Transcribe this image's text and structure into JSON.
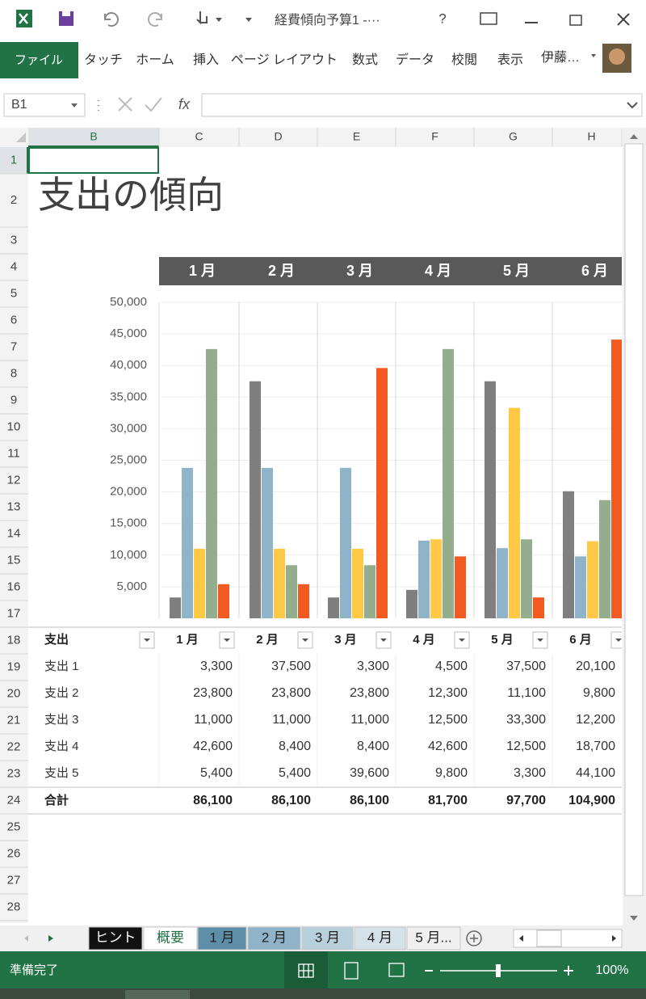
{
  "window": {
    "title": "経費傾向予算1 -···",
    "help": "?"
  },
  "ribbon": {
    "file_tab": "ファイル",
    "tabs": [
      "タッチ",
      "ホーム",
      "挿入",
      "ページ レイアウト",
      "数式",
      "データ",
      "校閲",
      "表示"
    ],
    "user": "伊藤…"
  },
  "formula_bar": {
    "name_box": "B1",
    "fx": "fx"
  },
  "sheet": {
    "columns": [
      "B",
      "C",
      "D",
      "E",
      "F",
      "G",
      "H"
    ],
    "rows": [
      "1",
      "2",
      "3",
      "4",
      "5",
      "6",
      "7",
      "8",
      "9",
      "10",
      "11",
      "12",
      "13",
      "14",
      "15",
      "16",
      "17",
      "18",
      "19",
      "20",
      "21",
      "22",
      "23",
      "24",
      "25",
      "26",
      "27",
      "28"
    ],
    "title": "支出の傾向"
  },
  "chart_data": {
    "type": "bar",
    "categories": [
      "1 月",
      "2 月",
      "3 月",
      "4 月",
      "5 月",
      "6 月"
    ],
    "series": [
      {
        "color": "#7f7f7f",
        "values": [
          3300,
          37500,
          3300,
          4500,
          37500,
          20100
        ]
      },
      {
        "color": "#8fb4c9",
        "values": [
          23800,
          23800,
          23800,
          12300,
          11100,
          9800
        ]
      },
      {
        "color": "#ffc845",
        "values": [
          11000,
          11000,
          11000,
          12500,
          33300,
          12200
        ]
      },
      {
        "color": "#93ad8e",
        "values": [
          42600,
          8400,
          8400,
          42600,
          12500,
          18700
        ]
      },
      {
        "color": "#f25a22",
        "values": [
          5400,
          5400,
          39600,
          9800,
          3300,
          44100
        ]
      }
    ],
    "ylim": [
      0,
      50000
    ],
    "yticks": [
      {
        "value": 5000,
        "label": "5,000"
      },
      {
        "value": 10000,
        "label": "10,000"
      },
      {
        "value": 15000,
        "label": "15,000"
      },
      {
        "value": 20000,
        "label": "20,000"
      },
      {
        "value": 25000,
        "label": "25,000"
      },
      {
        "value": 30000,
        "label": "30,000"
      },
      {
        "value": 35000,
        "label": "35,000"
      },
      {
        "value": 40000,
        "label": "40,000"
      },
      {
        "value": 45000,
        "label": "45,000"
      },
      {
        "value": 50000,
        "label": "50,000"
      }
    ],
    "grid": true
  },
  "table": {
    "header": [
      "支出",
      "1 月",
      "2 月",
      "3 月",
      "4 月",
      "5 月",
      "6 月"
    ],
    "rows": [
      [
        "支出 1",
        "3,300",
        "37,500",
        "3,300",
        "4,500",
        "37,500",
        "20,100"
      ],
      [
        "支出 2",
        "23,800",
        "23,800",
        "23,800",
        "12,300",
        "11,100",
        "9,800"
      ],
      [
        "支出 3",
        "11,000",
        "11,000",
        "11,000",
        "12,500",
        "33,300",
        "12,200"
      ],
      [
        "支出 4",
        "42,600",
        "8,400",
        "8,400",
        "42,600",
        "12,500",
        "18,700"
      ],
      [
        "支出 5",
        "5,400",
        "5,400",
        "39,600",
        "9,800",
        "3,300",
        "44,100"
      ]
    ],
    "total": [
      "合計",
      "86,100",
      "86,100",
      "86,100",
      "81,700",
      "97,700",
      "104,900"
    ]
  },
  "sheet_tabs": [
    "ヒント",
    "概要",
    "1 月",
    "2 月",
    "3 月",
    "4 月",
    "5 月..."
  ],
  "status_bar": {
    "status": "準備完了",
    "zoom": "100%"
  }
}
